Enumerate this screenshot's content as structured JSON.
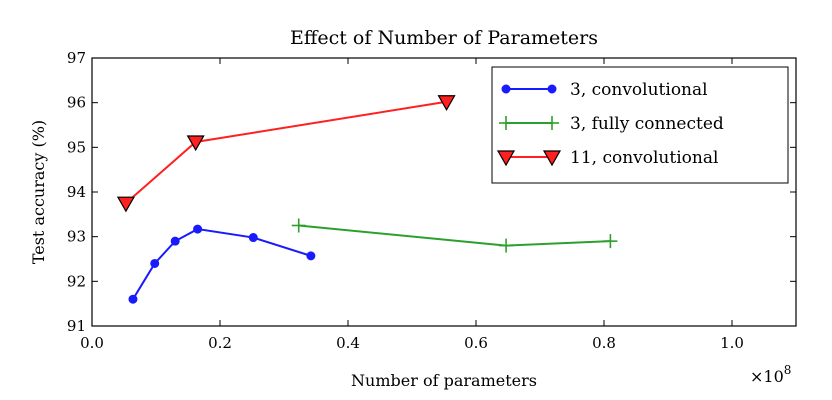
{
  "chart_data": {
    "type": "line",
    "title": "Effect of Number of Parameters",
    "xlabel": "Number of parameters",
    "ylabel": "Test accuracy (%)",
    "x_multiplier_label": "×10",
    "x_multiplier_exp": "8",
    "xlim": [
      0.0,
      1.1
    ],
    "ylim": [
      91,
      97
    ],
    "xticks": [
      "0.0",
      "0.2",
      "0.4",
      "0.6",
      "0.8",
      "1.0"
    ],
    "xtick_values": [
      0.0,
      0.2,
      0.4,
      0.6,
      0.8,
      1.0
    ],
    "yticks": [
      "91",
      "92",
      "93",
      "94",
      "95",
      "96",
      "97"
    ],
    "ytick_values": [
      91,
      92,
      93,
      94,
      95,
      96,
      97
    ],
    "grid": false,
    "legend_position": "top-right",
    "series": [
      {
        "name": "3, convolutional",
        "color": "#1a1aff",
        "marker": "circle",
        "x": [
          0.064,
          0.098,
          0.13,
          0.165,
          0.252,
          0.342
        ],
        "y": [
          91.6,
          92.4,
          92.9,
          93.17,
          92.98,
          92.57
        ]
      },
      {
        "name": "3, fully connected",
        "color": "#2ca02c",
        "marker": "plus",
        "x": [
          0.323,
          0.647,
          0.81
        ],
        "y": [
          93.25,
          92.8,
          92.9
        ]
      },
      {
        "name": "11, convolutional",
        "color": "#ff2020",
        "marker": "triangle-down",
        "x": [
          0.053,
          0.162,
          0.554
        ],
        "y": [
          93.75,
          95.12,
          96.02
        ]
      }
    ]
  }
}
